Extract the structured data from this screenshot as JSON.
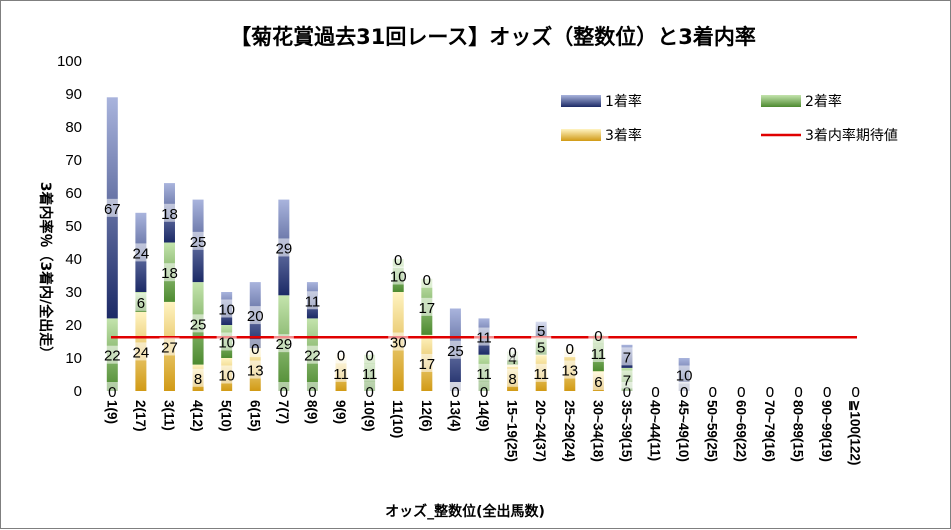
{
  "chart_data": {
    "type": "bar",
    "stacked": true,
    "title": "【菊花賞過去31回レース】オッズ（整数位）と3着内率",
    "xlabel": "オッズ_整数位(全出馬数)",
    "ylabel": "3着内率％（3着内/全出走）",
    "ylim": [
      0,
      100
    ],
    "yticks": [
      0,
      10,
      20,
      30,
      40,
      50,
      60,
      70,
      80,
      90,
      100
    ],
    "categories": [
      "1(9)",
      "2(17)",
      "3(11)",
      "4(12)",
      "5(10)",
      "6(15)",
      "7(7)",
      "8(9)",
      "9(9)",
      "10(9)",
      "11(10)",
      "12(6)",
      "13(4)",
      "14(9)",
      "15~19(25)",
      "20~24(37)",
      "25~29(24)",
      "30~34(18)",
      "35~39(15)",
      "40~44(11)",
      "45~49(10)",
      "50~59(25)",
      "60~69(22)",
      "70~79(16)",
      "80~89(15)",
      "90~99(19)",
      "≧100(122)"
    ],
    "series": [
      {
        "name": "3着率",
        "color": "#d4a017",
        "values": [
          0,
          24,
          27,
          8,
          10,
          13,
          0,
          0,
          11,
          0,
          30,
          17,
          0,
          0,
          8,
          11,
          13,
          6,
          0,
          0,
          0,
          0,
          0,
          0,
          0,
          0,
          0
        ]
      },
      {
        "name": "2着率",
        "color": "#5e9e3c",
        "values": [
          22,
          6,
          18,
          25,
          10,
          0,
          29,
          22,
          0,
          11,
          10,
          17,
          0,
          11,
          4,
          5,
          0,
          11,
          7,
          0,
          0,
          0,
          0,
          0,
          0,
          0,
          0
        ]
      },
      {
        "name": "1着率",
        "color": "#3c4e9e",
        "values": [
          67,
          24,
          18,
          25,
          10,
          20,
          29,
          11,
          0,
          0,
          0,
          0,
          25,
          11,
          0,
          5,
          0,
          0,
          7,
          0,
          10,
          0,
          0,
          0,
          0,
          0,
          0
        ]
      }
    ],
    "reference_line": {
      "name": "3着内率期待値",
      "value": 16.3,
      "color": "#e00000"
    },
    "legend": [
      "1着率",
      "2着率",
      "3着率",
      "3着内率期待値"
    ],
    "legend_position": "top-right"
  }
}
